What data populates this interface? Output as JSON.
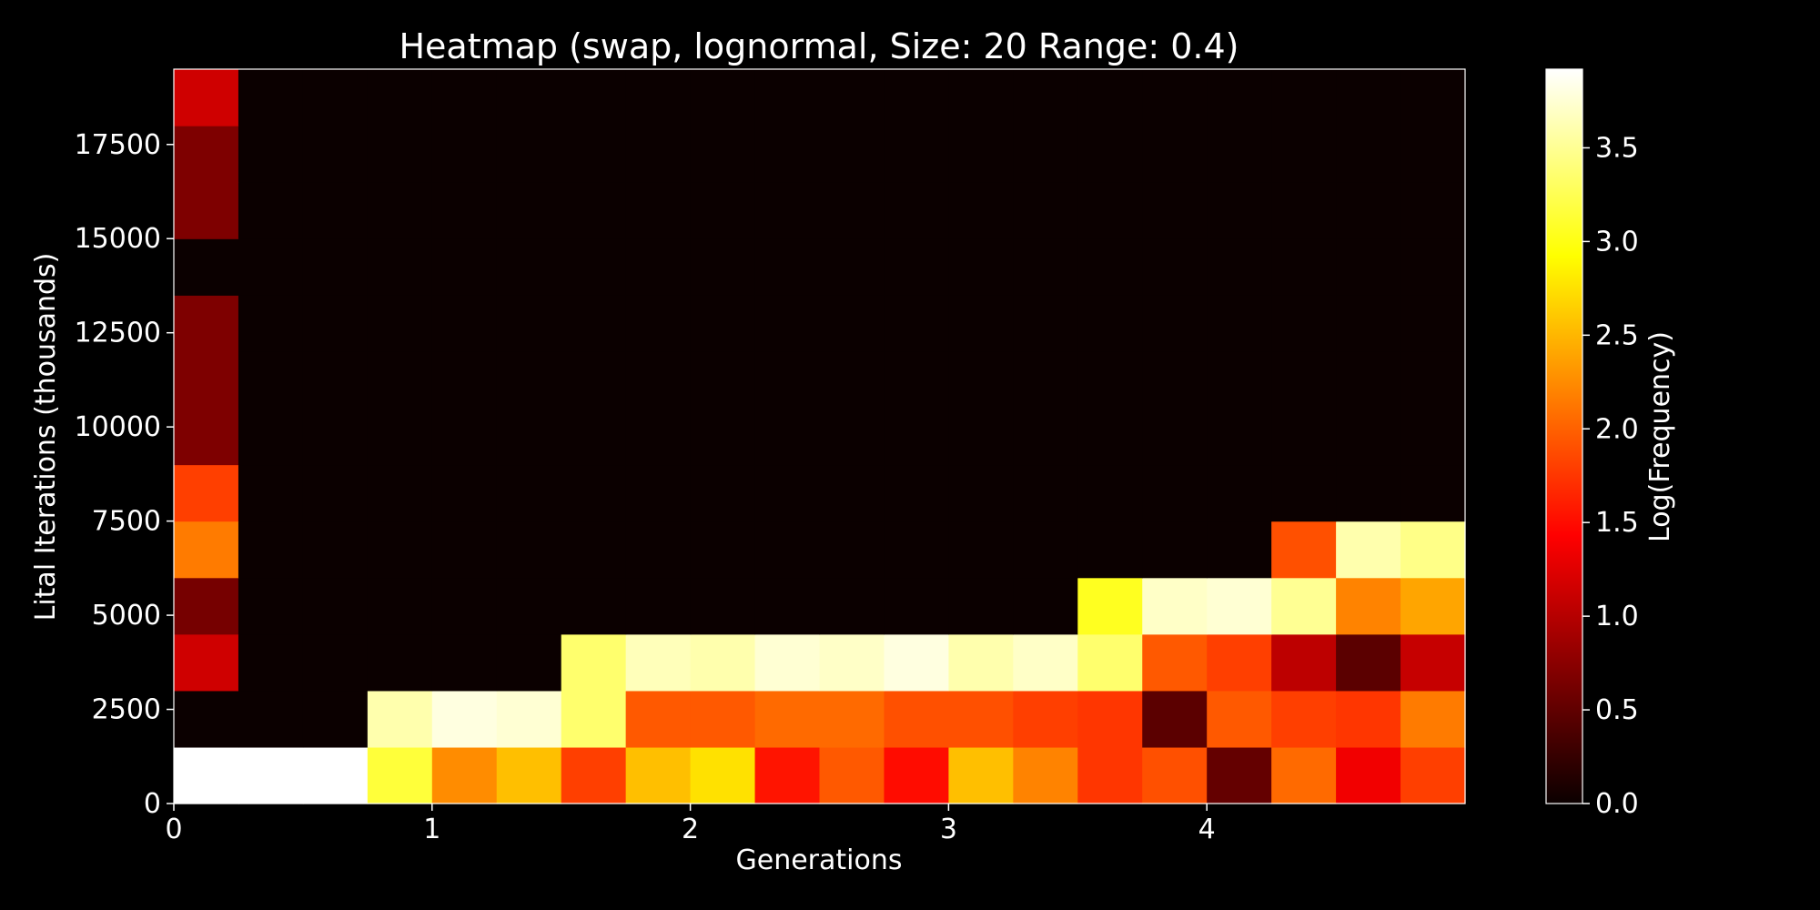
{
  "chart_data": {
    "type": "heatmap",
    "title": "Heatmap (swap, lognormal, Size: 20 Range: 0.4)",
    "xlabel": "Generations",
    "ylabel": "Lital Iterations (thousands)",
    "colorbar_label": "Log(Frequency)",
    "colormap": "hot",
    "x_range": [
      0,
      5
    ],
    "y_range": [
      0,
      19500
    ],
    "x_ticks": [
      0,
      1,
      2,
      3,
      4
    ],
    "x_tick_labels": [
      "0",
      "1",
      "2",
      "3",
      "4"
    ],
    "y_ticks": [
      0,
      2500,
      5000,
      7500,
      10000,
      12500,
      15000,
      17500
    ],
    "y_tick_labels": [
      "0",
      "2500",
      "5000",
      "7500",
      "10000",
      "12500",
      "15000",
      "17500"
    ],
    "color_range": [
      0,
      3.92
    ],
    "colorbar_ticks": [
      0,
      0.5,
      1,
      1.5,
      2,
      2.5,
      3,
      3.5
    ],
    "colorbar_tick_labels": [
      "0.0",
      "0.5",
      "1.0",
      "1.5",
      "2.0",
      "2.5",
      "3.0",
      "3.5"
    ],
    "x_bins": 20,
    "y_bins": 13,
    "rows_bottom_to_top": [
      [
        3.92,
        3.92,
        3.92,
        3.15,
        2.25,
        2.55,
        1.8,
        2.55,
        2.75,
        1.55,
        1.95,
        1.5,
        2.55,
        2.2,
        1.75,
        1.9,
        0.5,
        2.05,
        1.3,
        1.8
      ],
      [
        0.0,
        0.0,
        0.0,
        3.6,
        3.8,
        3.75,
        3.35,
        1.95,
        1.95,
        2.05,
        2.05,
        1.9,
        1.9,
        1.8,
        1.75,
        0.45,
        1.95,
        1.8,
        1.75,
        2.15
      ],
      [
        1.1,
        0.0,
        0.0,
        0.0,
        0.0,
        0.0,
        3.35,
        3.65,
        3.6,
        3.75,
        3.7,
        3.8,
        3.6,
        3.7,
        3.35,
        1.95,
        1.8,
        1.0,
        0.45,
        1.05
      ],
      [
        0.6,
        0.0,
        0.0,
        0.0,
        0.0,
        0.0,
        0.0,
        0.0,
        0.0,
        0.0,
        0.0,
        0.0,
        0.0,
        0.0,
        3.05,
        3.7,
        3.75,
        3.5,
        2.2,
        2.4
      ],
      [
        2.15,
        0.0,
        0.0,
        0.0,
        0.0,
        0.0,
        0.0,
        0.0,
        0.0,
        0.0,
        0.0,
        0.0,
        0.0,
        0.0,
        0.0,
        0.0,
        0.0,
        1.9,
        3.6,
        3.45
      ],
      [
        1.8,
        0.0,
        0.0,
        0.0,
        0.0,
        0.0,
        0.0,
        0.0,
        0.0,
        0.0,
        0.0,
        0.0,
        0.0,
        0.0,
        0.0,
        0.0,
        0.0,
        0.0,
        0.0,
        0.0
      ],
      [
        0.65,
        0.0,
        0.0,
        0.0,
        0.0,
        0.0,
        0.0,
        0.0,
        0.0,
        0.0,
        0.0,
        0.0,
        0.0,
        0.0,
        0.0,
        0.0,
        0.0,
        0.0,
        0.0,
        0.0
      ],
      [
        0.65,
        0.0,
        0.0,
        0.0,
        0.0,
        0.0,
        0.0,
        0.0,
        0.0,
        0.0,
        0.0,
        0.0,
        0.0,
        0.0,
        0.0,
        0.0,
        0.0,
        0.0,
        0.0,
        0.0
      ],
      [
        0.65,
        0.0,
        0.0,
        0.0,
        0.0,
        0.0,
        0.0,
        0.0,
        0.0,
        0.0,
        0.0,
        0.0,
        0.0,
        0.0,
        0.0,
        0.0,
        0.0,
        0.0,
        0.0,
        0.0
      ],
      [
        0.0,
        0.0,
        0.0,
        0.0,
        0.0,
        0.0,
        0.0,
        0.0,
        0.0,
        0.0,
        0.0,
        0.0,
        0.0,
        0.0,
        0.0,
        0.0,
        0.0,
        0.0,
        0.0,
        0.0
      ],
      [
        0.65,
        0.0,
        0.0,
        0.0,
        0.0,
        0.0,
        0.0,
        0.0,
        0.0,
        0.0,
        0.0,
        0.0,
        0.0,
        0.0,
        0.0,
        0.0,
        0.0,
        0.0,
        0.0,
        0.0
      ],
      [
        0.65,
        0.0,
        0.0,
        0.0,
        0.0,
        0.0,
        0.0,
        0.0,
        0.0,
        0.0,
        0.0,
        0.0,
        0.0,
        0.0,
        0.0,
        0.0,
        0.0,
        0.0,
        0.0,
        0.0
      ],
      [
        1.1,
        0.0,
        0.0,
        0.0,
        0.0,
        0.0,
        0.0,
        0.0,
        0.0,
        0.0,
        0.0,
        0.0,
        0.0,
        0.0,
        0.0,
        0.0,
        0.0,
        0.0,
        0.0,
        0.0
      ]
    ],
    "grid": false,
    "background_color": "#000000",
    "text_color": "#ffffff"
  }
}
